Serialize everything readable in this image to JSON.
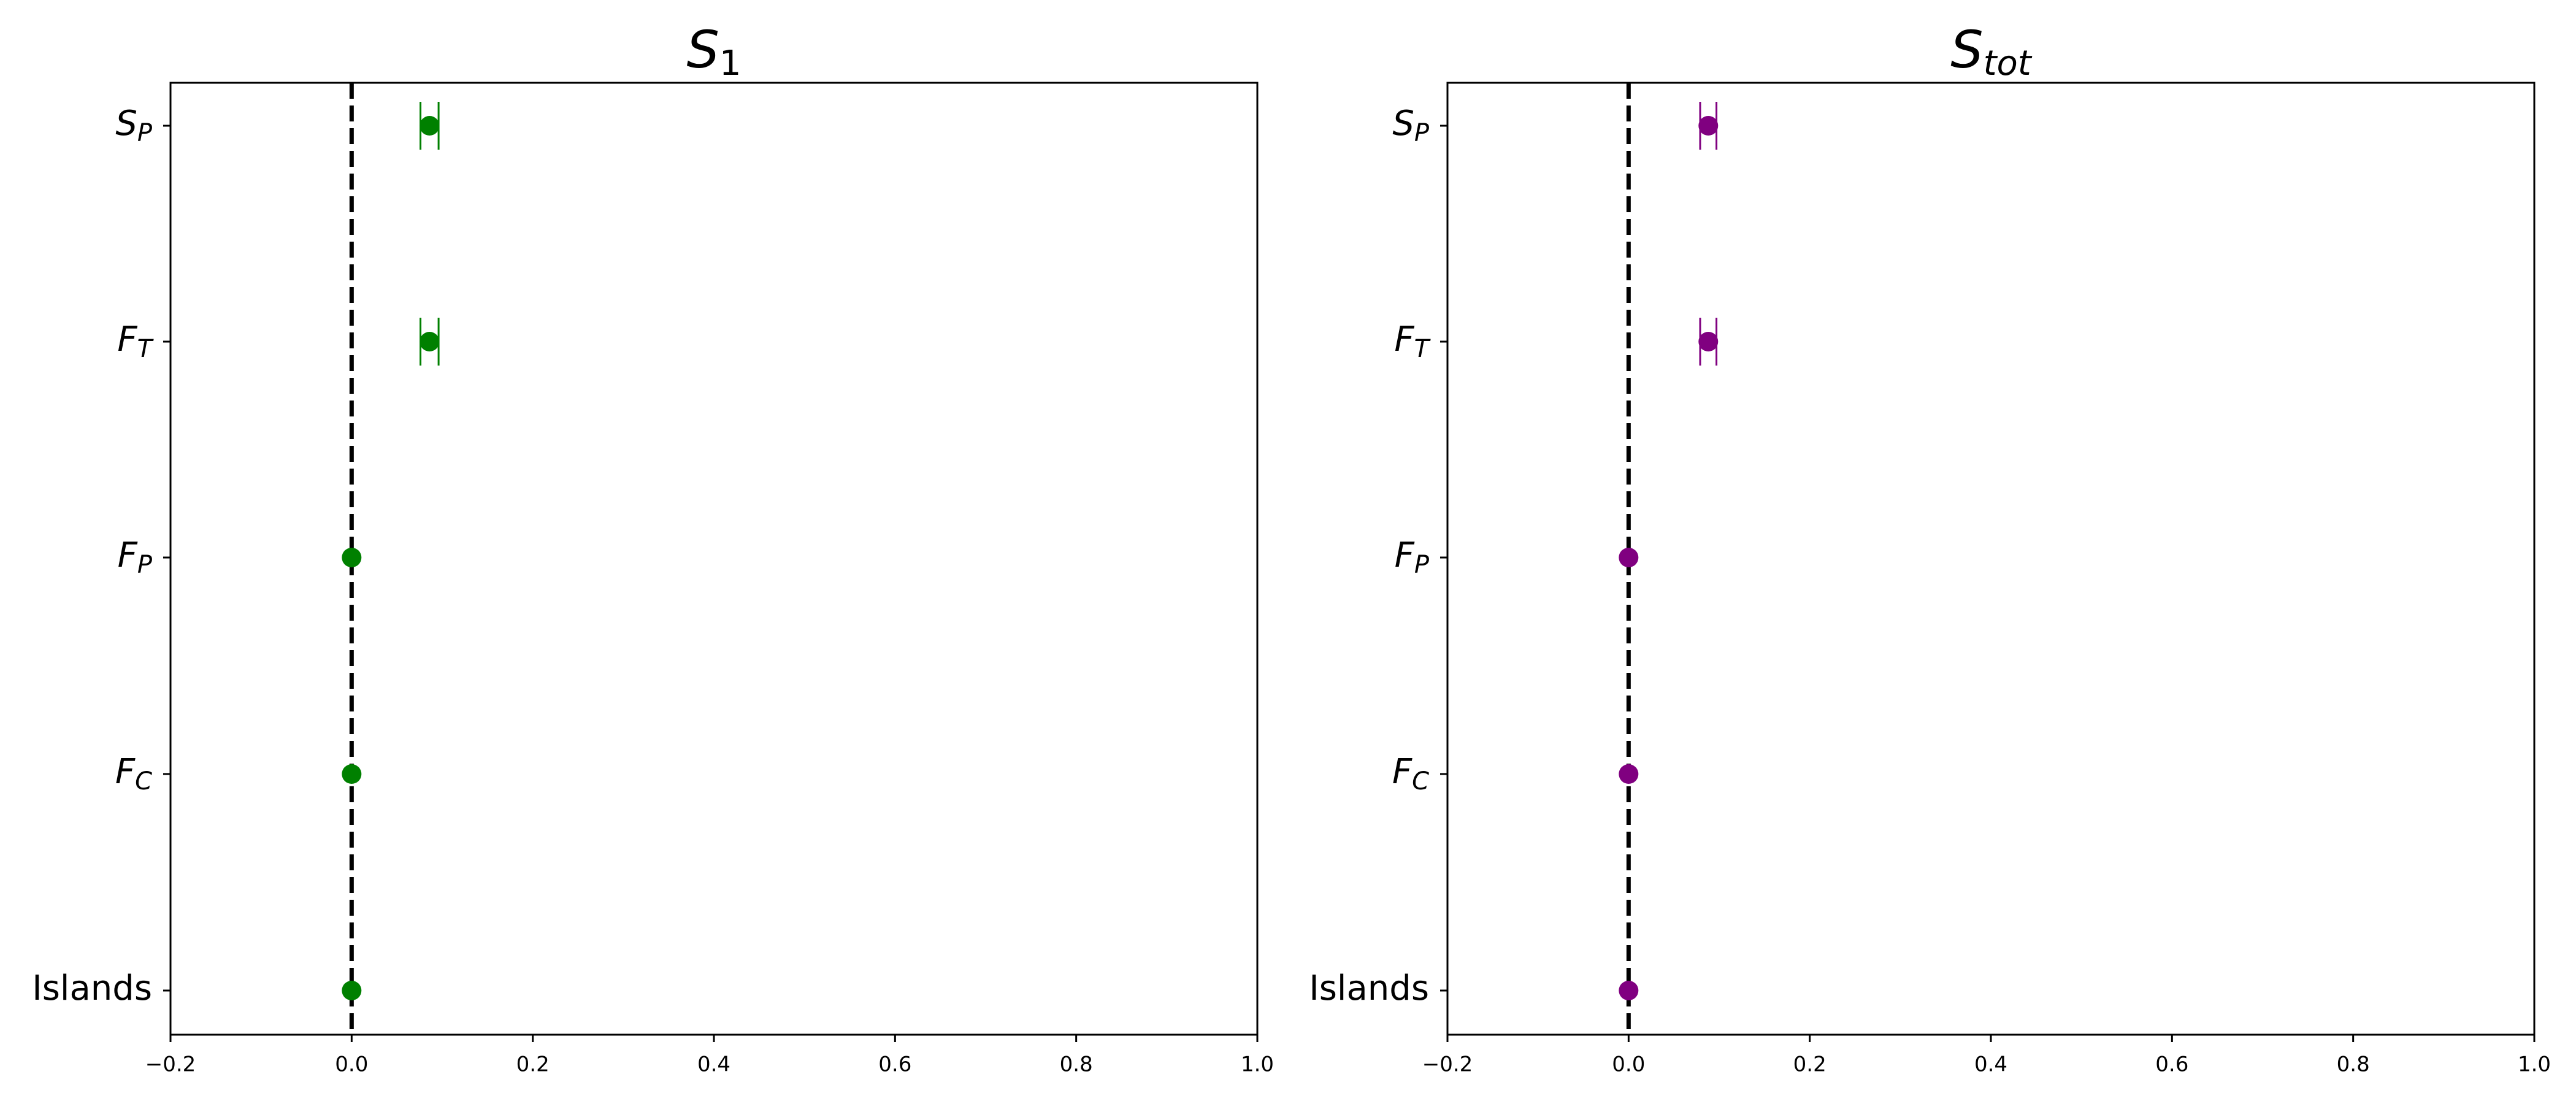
{
  "chart_data": [
    {
      "type": "scatter",
      "title": {
        "main": "S",
        "sub": "1",
        "sub_italic": false
      },
      "marker_color": "#008000",
      "categories": [
        {
          "key": "sp",
          "main": "S",
          "sub": "P"
        },
        {
          "key": "ft",
          "main": "F",
          "sub": "T"
        },
        {
          "key": "fp",
          "main": "F",
          "sub": "P"
        },
        {
          "key": "fc",
          "main": "F",
          "sub": "C"
        },
        {
          "key": "islands",
          "text": "Islands"
        }
      ],
      "series": [
        {
          "values": [
            0.086,
            0.086,
            0.0,
            0.0,
            0.0
          ],
          "errors": [
            0.01,
            0.01,
            0.0,
            0.0,
            0.0
          ]
        }
      ],
      "xlim": [
        -0.2,
        1.0
      ],
      "xticks": [
        -0.2,
        0.0,
        0.2,
        0.4,
        0.6,
        0.8,
        1.0
      ],
      "xtick_labels": [
        "−0.2",
        "0.0",
        "0.2",
        "0.4",
        "0.6",
        "0.8",
        "1.0"
      ],
      "reference_line": {
        "x": 0.0,
        "style": "dashed",
        "color": "#000000"
      },
      "grid": false
    },
    {
      "type": "scatter",
      "title": {
        "main": "S",
        "sub": "tot",
        "sub_italic": true
      },
      "marker_color": "#800080",
      "categories": [
        {
          "key": "sp",
          "main": "S",
          "sub": "P"
        },
        {
          "key": "ft",
          "main": "F",
          "sub": "T"
        },
        {
          "key": "fp",
          "main": "F",
          "sub": "P"
        },
        {
          "key": "fc",
          "main": "F",
          "sub": "C"
        },
        {
          "key": "islands",
          "text": "Islands"
        }
      ],
      "series": [
        {
          "values": [
            0.088,
            0.088,
            0.0,
            0.0,
            0.0
          ],
          "errors": [
            0.009,
            0.009,
            0.0,
            0.0,
            0.0
          ]
        }
      ],
      "xlim": [
        -0.2,
        1.0
      ],
      "xticks": [
        -0.2,
        0.0,
        0.2,
        0.4,
        0.6,
        0.8,
        1.0
      ],
      "xtick_labels": [
        "−0.2",
        "0.0",
        "0.2",
        "0.4",
        "0.6",
        "0.8",
        "1.0"
      ],
      "reference_line": {
        "x": 0.0,
        "style": "dashed",
        "color": "#000000"
      },
      "grid": false
    }
  ]
}
